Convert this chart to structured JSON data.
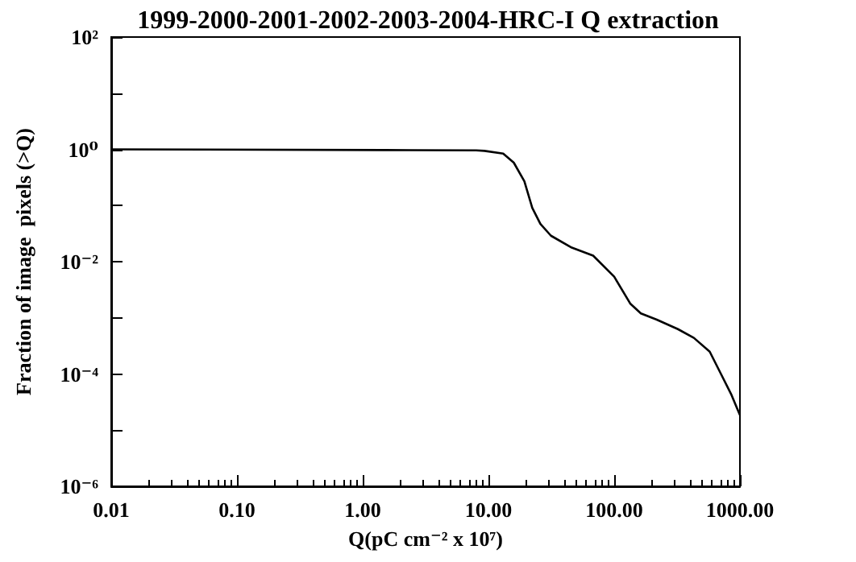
{
  "chart_data": {
    "type": "line",
    "title": "1999-2000-2001-2002-2003-2004-HRC-I Q extraction",
    "xlabel": "Q(pC cm⁻² x 10⁷)",
    "ylabel": "Fraction of image  pixels (>Q)",
    "log": "xy",
    "grid": false,
    "marker": "none",
    "line_style": "solid",
    "x": [
      0.01,
      1.5,
      8,
      9.3,
      13.1,
      15.9,
      19.3,
      22.3,
      25.9,
      31.4,
      46,
      68,
      100,
      134,
      163,
      218,
      321,
      430,
      575,
      699,
      850,
      1000
    ],
    "series": [
      {
        "color": "#000000",
        "values": [
          1,
          0.97,
          0.96,
          0.94,
          0.84,
          0.58,
          0.27,
          0.091,
          0.047,
          0.029,
          0.0178,
          0.0128,
          0.0054,
          0.0018,
          0.0012,
          0.00093,
          0.00063,
          0.00044,
          0.00025,
          0.000105,
          4.4e-05,
          1.85e-05
        ]
      }
    ],
    "xlim": [
      0.01,
      1000
    ],
    "xticks": [
      {
        "value": 0.01,
        "label": "0.01"
      },
      {
        "value": 0.1,
        "label": "0.10"
      },
      {
        "value": 1,
        "label": "1.00"
      },
      {
        "value": 10,
        "label": "10.00"
      },
      {
        "value": 100,
        "label": "100.00"
      },
      {
        "value": 1000,
        "label": "1000.00"
      }
    ],
    "ylim": [
      1e-06,
      100
    ],
    "yticks": [
      {
        "value": 1e-06,
        "label": "10⁻⁶"
      },
      {
        "value": 1e-05,
        "label": null
      },
      {
        "value": 0.0001,
        "label": "10⁻⁴"
      },
      {
        "value": 0.001,
        "label": null
      },
      {
        "value": 0.01,
        "label": "10⁻²"
      },
      {
        "value": 0.1,
        "label": null
      },
      {
        "value": 1,
        "label": "10⁰"
      },
      {
        "value": 10,
        "label": null
      },
      {
        "value": 100,
        "label": "10²"
      }
    ]
  }
}
